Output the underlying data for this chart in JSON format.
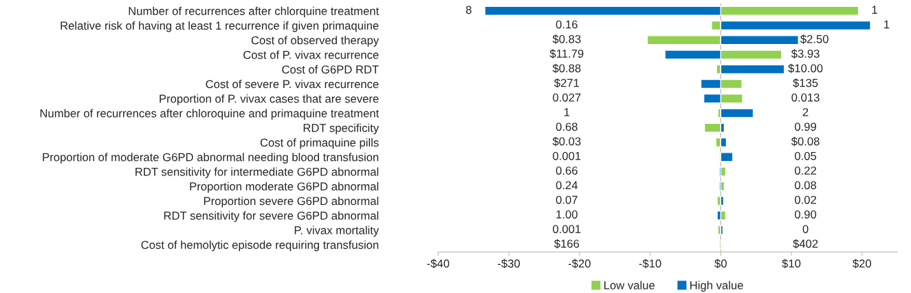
{
  "chart_data": {
    "type": "bar",
    "orientation": "horizontal",
    "stacked": true,
    "categories": [
      "Number of recurrences after chlorquine treatment",
      "Relative risk of having at least 1 recurrence if given primaquine",
      "Cost of observed therapy",
      "Cost of P. vivax recurrence",
      "Cost of G6PD RDT",
      "Cost of severe P. vivax recurrence",
      "Proportion of P. vivax cases that are severe",
      "Number of recurrences after chloroquine and primaquine treatment",
      "RDT specificity",
      "Cost of primaquine pills",
      "Proportion of moderate G6PD abnormal needing blood transfusion",
      "RDT sensitivity for intermediate G6PD abnormal",
      "Proportion moderate G6PD abnormal",
      "Proportion severe G6PD abnormal",
      "RDT sensitivity for severe G6PD abnormal",
      "P. vivax mortality",
      "Cost of hemolytic episode requiring transfusion"
    ],
    "series": [
      {
        "name": "Low value",
        "color": "#92d050",
        "values": [
          19.5,
          -1.3,
          -10.4,
          8.6,
          -0.6,
          3.0,
          3.1,
          -0.4,
          -2.3,
          -0.7,
          -0.2,
          0.7,
          0.5,
          -0.5,
          0.7,
          -0.4,
          -0.2
        ]
      },
      {
        "name": "High value",
        "color": "#0070c0",
        "values": [
          -33.4,
          21.2,
          11.0,
          -7.9,
          9.0,
          -2.8,
          -2.4,
          4.6,
          0.5,
          0.8,
          1.7,
          -0.2,
          -0.2,
          0.4,
          -0.5,
          0.3,
          null
        ]
      }
    ],
    "annotations": [
      "8",
      "1",
      "0.16",
      "1",
      "$0.83",
      "$2.50",
      "$11.79",
      "$3.93",
      "$0.88",
      "$10.00",
      "$271",
      "$135",
      "0.027",
      "0.013",
      "1",
      "2",
      "0.68",
      "0.99",
      "$0.03",
      "$0.08",
      "0.001",
      "0.05",
      "0.66",
      "0.22",
      "0.24",
      "0.08",
      "0.07",
      "0.02",
      "1.00",
      "0.90",
      "0.001",
      "0",
      "$166",
      "$402"
    ],
    "xlim": [
      -40,
      25
    ],
    "xticks": [
      {
        "value": -40,
        "label": "-$40"
      },
      {
        "value": -30,
        "label": "-$30"
      },
      {
        "value": -20,
        "label": "-$20"
      },
      {
        "value": -10,
        "label": "-$10"
      },
      {
        "value": 0,
        "label": "$0"
      },
      {
        "value": 10,
        "label": "$10"
      },
      {
        "value": 20,
        "label": "$20"
      }
    ],
    "ref_lines": [
      {
        "axis": "x",
        "value": 0,
        "color": "#bfbfbf"
      }
    ],
    "legend": "bottom"
  }
}
